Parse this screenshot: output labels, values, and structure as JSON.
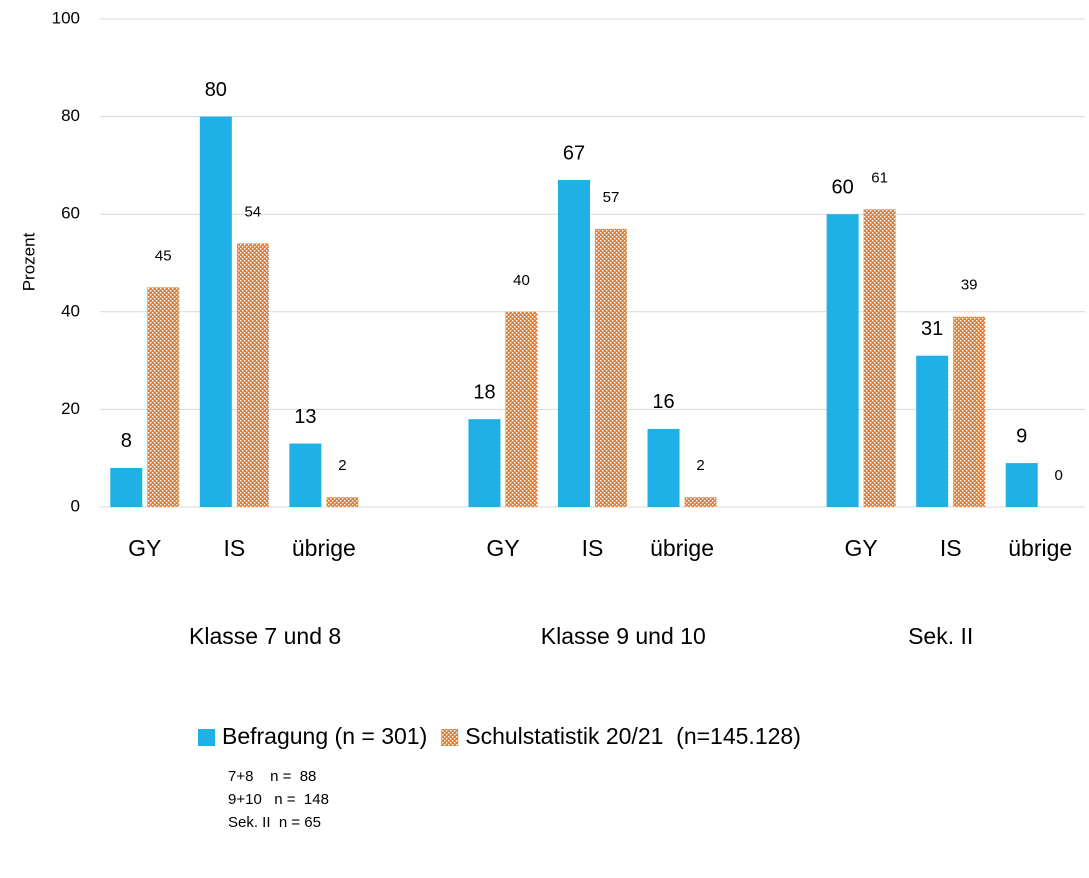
{
  "chart_data": {
    "type": "bar",
    "categories": [
      "GY",
      "IS",
      "übrige",
      null,
      "GY",
      "IS",
      "übrige",
      null,
      "GY",
      "IS",
      "übrige"
    ],
    "groups": [
      "Klasse 7 und 8",
      "Klasse 9 und 10",
      "Sek. II"
    ],
    "series": [
      {
        "name": "Befragung (n = 301)",
        "color": "#1fb0e6",
        "values": [
          8,
          80,
          13,
          null,
          18,
          67,
          16,
          null,
          60,
          31,
          9
        ]
      },
      {
        "name": "Schulstatistik 20/21  (n=145.128)",
        "color": "#ed7d31",
        "pattern": "dots",
        "values": [
          45,
          54,
          2,
          null,
          40,
          57,
          2,
          null,
          61,
          39,
          0
        ]
      }
    ],
    "ylabel": "Prozent",
    "ylim": [
      0,
      100
    ],
    "yticks": [
      0,
      20,
      40,
      60,
      80,
      100
    ],
    "grid": true,
    "legend": "bottom",
    "notes": [
      "7+8    n =  88",
      "9+10   n =  148",
      "Sek. II  n = 65"
    ]
  }
}
